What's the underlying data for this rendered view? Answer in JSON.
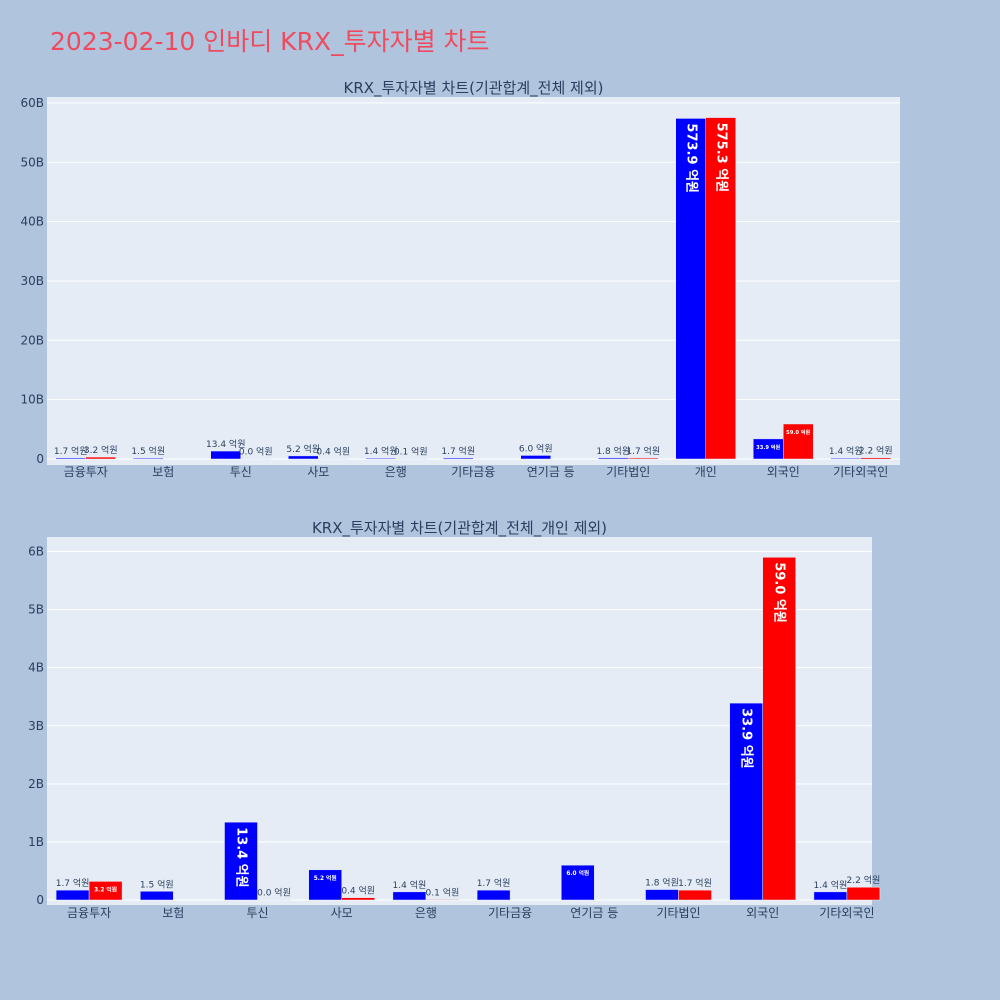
{
  "page_title": "2023-02-10 인바디 KRX_투자자별 차트",
  "colors": {
    "buy": "#0000ff",
    "sell": "#ff0000",
    "plot_bg": "#e5ecf6",
    "page_bg": "#b0c4de",
    "title": "#ef4b5e"
  },
  "chart_data": [
    {
      "type": "bar",
      "title": "KRX_투자자별 차트(기관합계_전체 제외)",
      "categories": [
        "금융투자",
        "보험",
        "투신",
        "사모",
        "은행",
        "기타금융",
        "연기금 등",
        "기타법인",
        "개인",
        "외국인",
        "기타외국인"
      ],
      "ylim": [
        0,
        61
      ],
      "yticks": [
        0,
        10,
        20,
        30,
        40,
        50,
        60
      ],
      "ytick_labels": [
        "0",
        "10B",
        "20B",
        "30B",
        "40B",
        "50B",
        "60B"
      ],
      "grid": true,
      "legend": "none",
      "series": [
        {
          "values": [
            0.17,
            0.15,
            1.34,
            0.52,
            0.14,
            0.17,
            0.6,
            0.18,
            57.39,
            3.39,
            0.14
          ],
          "labels": [
            "1.7 억원",
            "1.5 억원",
            "13.4 억원",
            "5.2 억원",
            "1.4 억원",
            "1.7 억원",
            "6.0 억원",
            "1.8 억원",
            "573.9 억원",
            "33.9 억원",
            "1.4 억원"
          ]
        },
        {
          "values": [
            0.32,
            null,
            0.0,
            0.04,
            0.01,
            null,
            null,
            0.17,
            57.53,
            5.9,
            0.22
          ],
          "labels": [
            "3.2 억원",
            null,
            "0.0 억원",
            "0.4 억원",
            "0.1 억원",
            null,
            null,
            "1.7 억원",
            "575.3 억원",
            "59.0 억원",
            "2.2 억원"
          ]
        }
      ]
    },
    {
      "type": "bar",
      "title": "KRX_투자자별 차트(기관합계_전체_개인 제외)",
      "categories": [
        "금융투자",
        "보험",
        "투신",
        "사모",
        "은행",
        "기타금융",
        "연기금 등",
        "기타법인",
        "외국인",
        "기타외국인"
      ],
      "ylim": [
        0,
        6.25
      ],
      "yticks": [
        0,
        1,
        2,
        3,
        4,
        5,
        6
      ],
      "ytick_labels": [
        "0",
        "1B",
        "2B",
        "3B",
        "4B",
        "5B",
        "6B"
      ],
      "grid": true,
      "legend": "none",
      "series": [
        {
          "values": [
            0.17,
            0.15,
            1.34,
            0.52,
            0.14,
            0.17,
            0.6,
            0.18,
            3.39,
            0.14
          ],
          "labels": [
            "1.7 억원",
            "1.5 억원",
            "13.4 억원",
            "5.2 억원",
            "1.4 억원",
            "1.7 억원",
            "6.0 억원",
            "1.8 억원",
            "33.9 억원",
            "1.4 억원"
          ]
        },
        {
          "values": [
            0.32,
            null,
            0.0,
            0.04,
            0.01,
            null,
            null,
            0.17,
            5.9,
            0.22
          ],
          "labels": [
            "3.2 억원",
            null,
            "0.0 억원",
            "0.4 억원",
            "0.1 억원",
            null,
            null,
            "1.7 억원",
            "59.0 억원",
            "2.2 억원"
          ]
        }
      ]
    }
  ]
}
